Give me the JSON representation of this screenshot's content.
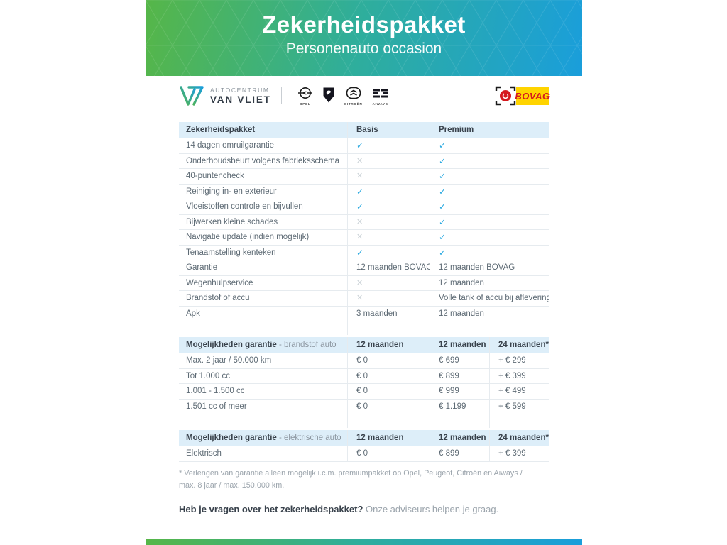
{
  "header": {
    "title": "Zekerheidspakket",
    "subtitle": "Personenauto occasion"
  },
  "branding": {
    "dealer_line1": "AUTOCENTRUM",
    "dealer_line2": "VAN VLIET",
    "brands": [
      {
        "name": "Opel",
        "label": "OPEL"
      },
      {
        "name": "Peugeot",
        "label": ""
      },
      {
        "name": "Citroën",
        "label": "CITROËN"
      },
      {
        "name": "Aiways",
        "label": "AIWAYS"
      }
    ],
    "bovag_label": "BOVAG"
  },
  "colors": {
    "gradient_green": "#56b648",
    "gradient_blue": "#1a9edb",
    "table_header_bg": "#ddeef9",
    "check_blue": "#2aa9e0",
    "cross_gray": "#c9d1d6",
    "bovag_red": "#d5191e",
    "bovag_yellow": "#ffd400"
  },
  "package_table": {
    "headers": [
      "Zekerheidspakket",
      "Basis",
      "Premium"
    ],
    "rows": [
      {
        "label": "14 dagen omruilgarantie",
        "cells": [
          "check",
          "check"
        ]
      },
      {
        "label": "Onderhoudsbeurt volgens fabrieksschema",
        "cells": [
          "cross",
          "check"
        ]
      },
      {
        "label": "40-puntencheck",
        "cells": [
          "cross",
          "check"
        ]
      },
      {
        "label": "Reiniging in- en exterieur",
        "cells": [
          "check",
          "check"
        ]
      },
      {
        "label": "Vloeistoffen controle en bijvullen",
        "cells": [
          "check",
          "check"
        ]
      },
      {
        "label": "Bijwerken kleine schades",
        "cells": [
          "cross",
          "check"
        ]
      },
      {
        "label": "Navigatie update (indien mogelijk)",
        "cells": [
          "cross",
          "check"
        ]
      },
      {
        "label": "Tenaamstelling kenteken",
        "cells": [
          "check",
          "check"
        ]
      },
      {
        "label": "Garantie",
        "cells": [
          "12 maanden BOVAG",
          "12 maanden BOVAG"
        ]
      },
      {
        "label": "Wegenhulpservice",
        "cells": [
          "cross",
          "12 maanden"
        ]
      },
      {
        "label": "Brandstof of accu",
        "cells": [
          "cross",
          "Volle tank of accu bij aflevering"
        ]
      },
      {
        "label": "Apk",
        "cells": [
          "3 maanden",
          "12 maanden"
        ]
      }
    ]
  },
  "fuel_table": {
    "title_bold": "Mogelijkheden garantie",
    "title_rest": " - brandstof auto",
    "headers": [
      "12 maanden",
      "12 maanden",
      "24 maanden*"
    ],
    "rows": [
      {
        "label": "Max. 2 jaar / 50.000 km",
        "cells": [
          "€ 0",
          "€ 699",
          "+ € 299"
        ]
      },
      {
        "label": "Tot 1.000 cc",
        "cells": [
          "€ 0",
          "€ 899",
          "+ € 399"
        ]
      },
      {
        "label": "1.001 - 1.500 cc",
        "cells": [
          "€ 0",
          "€ 999",
          "+ € 499"
        ]
      },
      {
        "label": "1.501 cc of meer",
        "cells": [
          "€ 0",
          "€ 1.199",
          "+ € 599"
        ]
      }
    ]
  },
  "electric_table": {
    "title_bold": "Mogelijkheden garantie",
    "title_rest": " - elektrische auto",
    "headers": [
      "12 maanden",
      "12 maanden",
      "24 maanden*"
    ],
    "rows": [
      {
        "label": "Elektrisch",
        "cells": [
          "€ 0",
          "€ 899",
          "+ € 399"
        ]
      }
    ]
  },
  "footnote": "* Verlengen van garantie alleen mogelijk i.c.m. premiumpakket op Opel, Peugeot, Citroën en Aiways / max. 8 jaar / max. 150.000 km.",
  "question": {
    "bold": "Heb je vragen over het zekerheidspakket?",
    "rest": " Onze adviseurs helpen je graag."
  }
}
